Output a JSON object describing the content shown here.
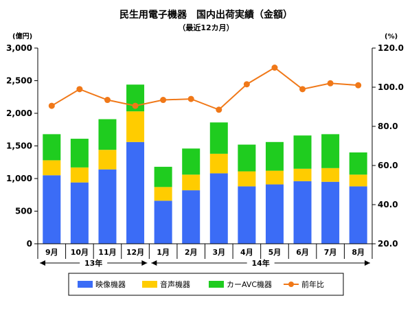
{
  "chart_data": {
    "type": "bar",
    "stacked": true,
    "title": "民生用電子機器　国内出荷実績（金額）",
    "subtitle": "（最近12カ月）",
    "y_left_unit": "(億円)",
    "y_right_unit": "(%)",
    "y_left_ticks": [
      "0",
      "500",
      "1,000",
      "1,500",
      "2,000",
      "2,500",
      "3,000"
    ],
    "y_right_ticks": [
      "20.0",
      "40.0",
      "60.0",
      "80.0",
      "100.0",
      "120.0"
    ],
    "ylim_left": [
      0,
      3000
    ],
    "ylim_right": [
      20,
      120
    ],
    "categories": [
      "9月",
      "10月",
      "11月",
      "12月",
      "1月",
      "2月",
      "3月",
      "4月",
      "5月",
      "6月",
      "7月",
      "8月"
    ],
    "year_groups": [
      {
        "label": "13年",
        "start": 0,
        "end": 3
      },
      {
        "label": "14年",
        "start": 4,
        "end": 11
      }
    ],
    "series": [
      {
        "name": "映像機器",
        "type": "bar",
        "color": "#3b6cf6",
        "values": [
          1050,
          940,
          1140,
          1560,
          660,
          820,
          1080,
          880,
          910,
          960,
          950,
          880
        ]
      },
      {
        "name": "音声機器",
        "type": "bar",
        "color": "#ffcc00",
        "values": [
          230,
          230,
          300,
          470,
          210,
          240,
          300,
          230,
          210,
          190,
          210,
          180
        ]
      },
      {
        "name": "カーAVC機器",
        "type": "bar",
        "color": "#1fcc1f",
        "values": [
          400,
          440,
          470,
          410,
          310,
          400,
          480,
          410,
          440,
          510,
          520,
          340
        ]
      },
      {
        "name": "前年比",
        "type": "line",
        "axis": "right",
        "color": "#f07818",
        "values": [
          90.5,
          99.0,
          93.5,
          90.5,
          93.5,
          94.0,
          88.5,
          101.5,
          110.0,
          99.0,
          102.0,
          101.0
        ]
      }
    ],
    "grid": false,
    "legend_position": "bottom"
  }
}
